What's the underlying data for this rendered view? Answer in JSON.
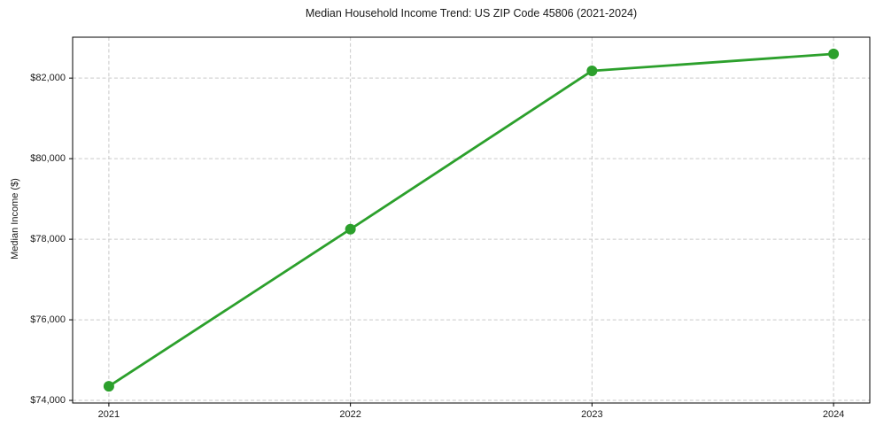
{
  "chart_data": {
    "type": "line",
    "title": "Median Household Income Trend: US ZIP Code 45806 (2021-2024)",
    "xlabel": "",
    "ylabel": "Median Income ($)",
    "categories": [
      2021,
      2022,
      2023,
      2024
    ],
    "x_tick_labels": [
      "2021",
      "2022",
      "2023",
      "2024"
    ],
    "series": [
      {
        "name": "Median Household Income",
        "values": [
          74350,
          78250,
          82180,
          82600
        ]
      }
    ],
    "y_ticks": [
      74000,
      76000,
      78000,
      80000,
      82000
    ],
    "y_tick_labels": [
      "$74,000",
      "$76,000",
      "$78,000",
      "$80,000",
      "$82,000"
    ],
    "xlim": [
      2020.85,
      2024.15
    ],
    "ylim": [
      73935,
      83015
    ],
    "grid": true,
    "legend": "none",
    "colors": {
      "line": "#2ca02c",
      "marker": "#2ca02c",
      "grid": "#c9c9c9",
      "spine": "#000000",
      "text": "#1a1a1a",
      "background": "#ffffff"
    }
  }
}
